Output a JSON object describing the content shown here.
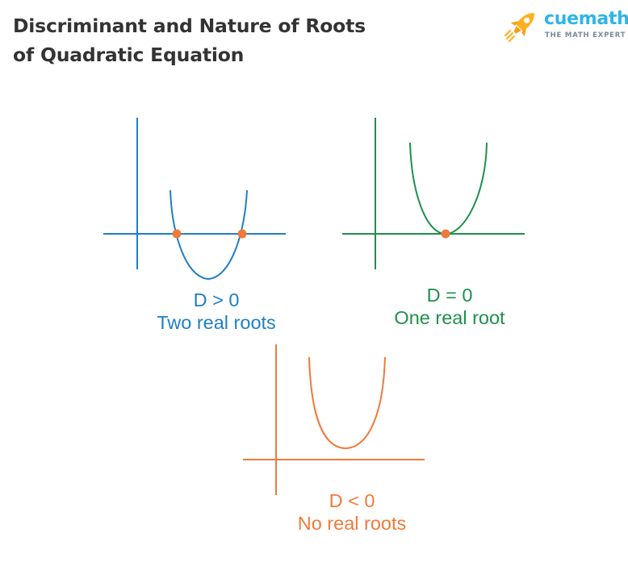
{
  "title": {
    "line1": "Discriminant and Nature of Roots",
    "line2": "of Quadratic Equation"
  },
  "logo": {
    "brand": "cuemath",
    "tagline": "THE MATH EXPERT",
    "icon": "rocket-icon"
  },
  "colors": {
    "title": "#333333",
    "brand": "#2fb4e8",
    "rocket": "#ffb020",
    "two_roots": "#1f7fc7",
    "one_root": "#1f8f4e",
    "no_roots": "#f07a3a",
    "root_point": "#f07a3a"
  },
  "cases": [
    {
      "condition": "D > 0",
      "description": "Two real roots",
      "root_count": 2
    },
    {
      "condition": "D = 0",
      "description": "One real root",
      "root_count": 1
    },
    {
      "condition": "D < 0",
      "description": "No real roots",
      "root_count": 0
    }
  ]
}
